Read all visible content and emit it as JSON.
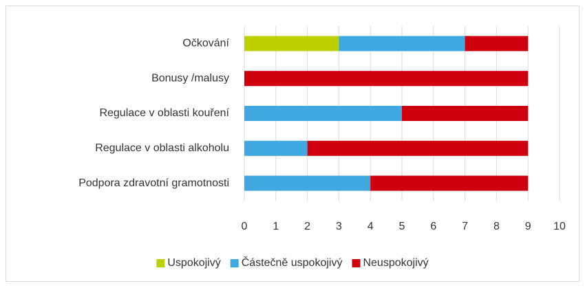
{
  "chart_data": {
    "type": "bar",
    "orientation": "horizontal",
    "stacked": true,
    "categories": [
      "Očkování",
      "Bonusy /malusy",
      "Regulace v oblasti kouření",
      "Regulace v oblasti alkoholu",
      "Podpora zdravotní gramotnosti"
    ],
    "series": [
      {
        "name": "Uspokojivý",
        "color": "#bdd000",
        "values": [
          3,
          0,
          0,
          0,
          0
        ]
      },
      {
        "name": "Částečně uspokojivý",
        "color": "#40a8e0",
        "values": [
          4,
          0,
          5,
          2,
          4
        ]
      },
      {
        "name": "Neuspokojivý",
        "color": "#d0000f",
        "values": [
          2,
          9,
          4,
          7,
          5
        ]
      }
    ],
    "xlim": [
      0,
      10
    ],
    "xticks": [
      0,
      1,
      2,
      3,
      4,
      5,
      6,
      7,
      8,
      9,
      10
    ],
    "grid": true,
    "legend": "bottom"
  }
}
